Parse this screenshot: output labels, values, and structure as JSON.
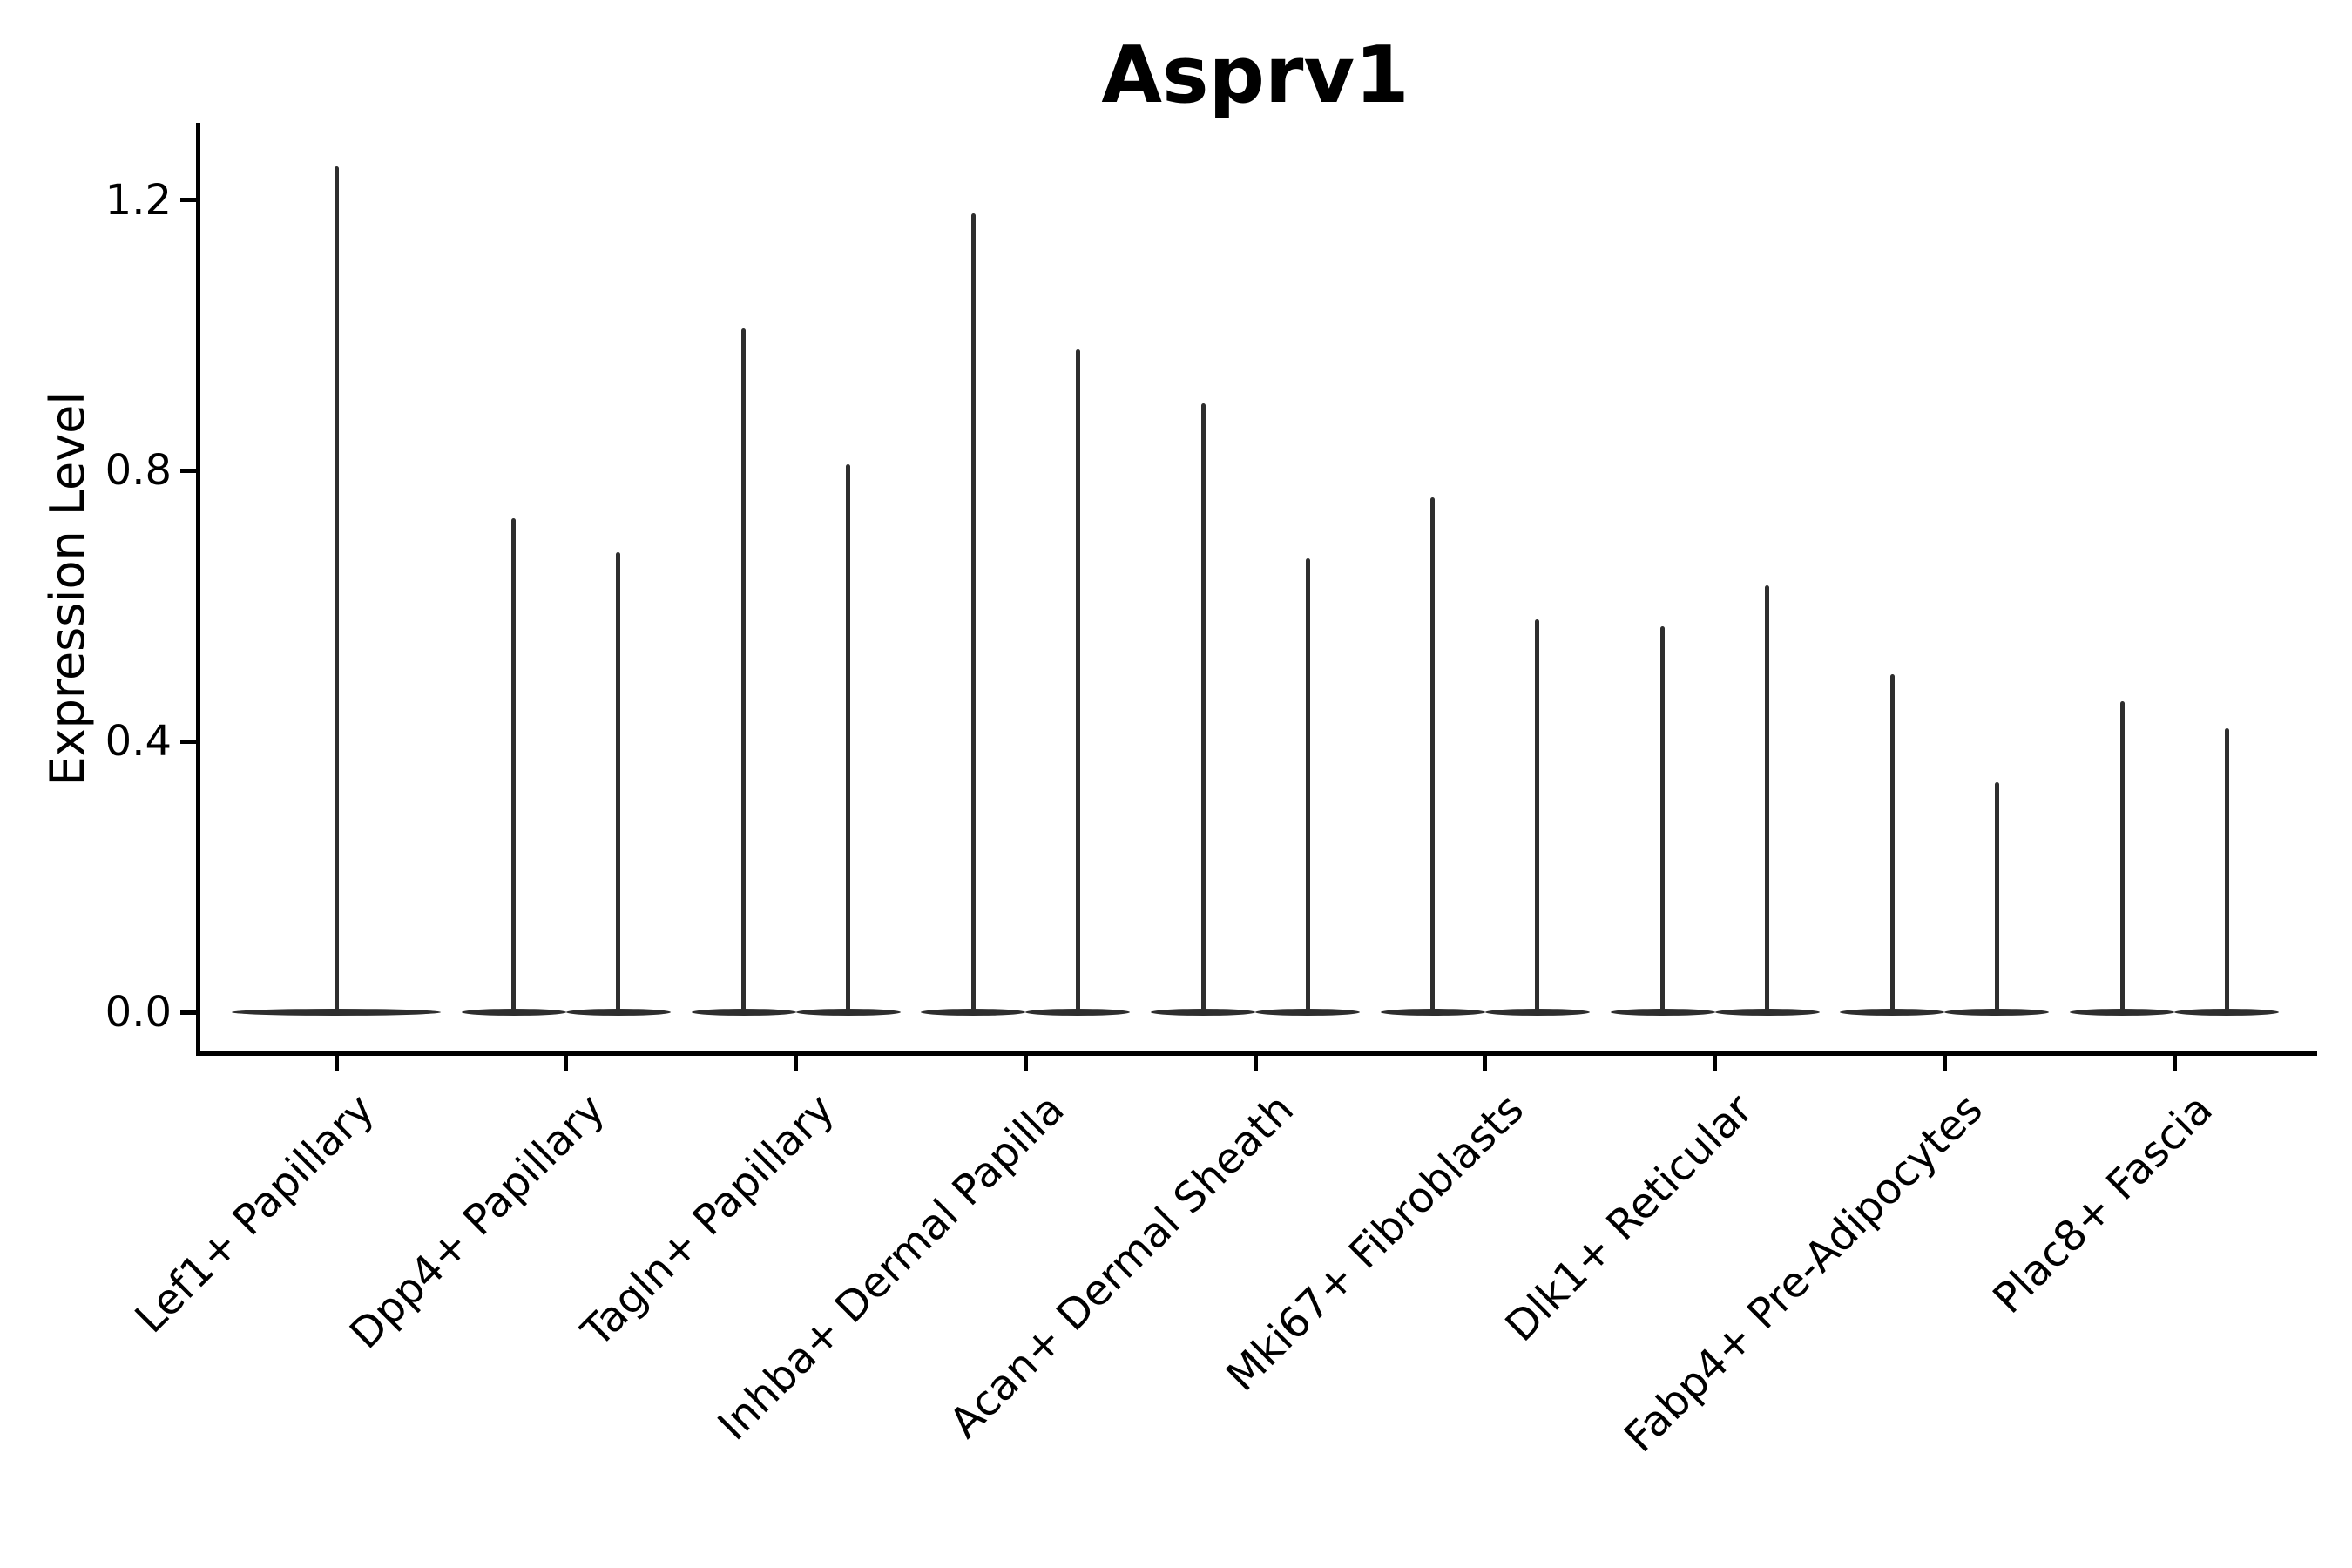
{
  "chart_data": {
    "type": "violin",
    "title": "Asprv1",
    "ylabel": "Expression Level",
    "xlabel": "",
    "grid": false,
    "legend": "none",
    "ylim": [
      -0.06,
      1.32
    ],
    "ytick_values": [
      0.0,
      0.4,
      0.8,
      1.2
    ],
    "ytick_labels": [
      "0.0",
      "0.4",
      "0.8",
      "1.2"
    ],
    "categories": [
      "Lef1+ Papillary",
      "Dpp4+ Papillary",
      "Tagln+ Papillary",
      "Inhba+ Dermal Papilla",
      "Acan+ Dermal Sheath",
      "Mki67+ Fibroblasts",
      "Dlk1+ Reticular",
      "Fabp4+ Pre-Adipocytes",
      "Plac8+ Fascia"
    ],
    "violin_description": "Each category shows narrow spike violins rising from a flat dense base at expression 0; values below are the maximum expression reached by each violin (left-to-right within category).",
    "violin_maxima": [
      [
        1.25
      ],
      [
        0.73,
        0.68
      ],
      [
        1.01,
        0.81
      ],
      [
        1.18,
        0.98
      ],
      [
        0.9,
        0.67
      ],
      [
        0.76,
        0.58
      ],
      [
        0.57,
        0.63
      ],
      [
        0.5,
        0.34
      ],
      [
        0.46,
        0.42
      ]
    ],
    "violin_color": "#2e2e2e",
    "axis_color": "#000000",
    "background_color": "#ffffff"
  }
}
